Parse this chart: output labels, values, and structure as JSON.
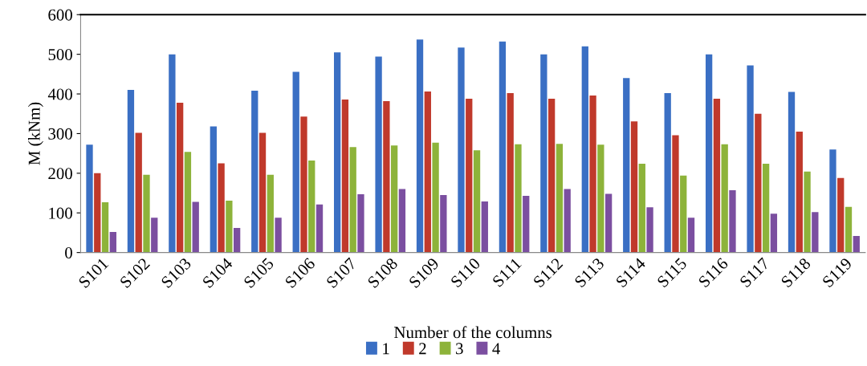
{
  "chart_data": {
    "type": "bar",
    "xlabel": "Number of the columns",
    "ylabel": "M (kNm)",
    "categories": [
      "S101",
      "S102",
      "S103",
      "S104",
      "S105",
      "S106",
      "S107",
      "S108",
      "S109",
      "S110",
      "S111",
      "S112",
      "S113",
      "S114",
      "S115",
      "S116",
      "S117",
      "S118",
      "S119"
    ],
    "series": [
      {
        "name": "1",
        "color": "#3a6fc4",
        "values": [
          272,
          410,
          500,
          318,
          408,
          456,
          505,
          494,
          537,
          517,
          532,
          500,
          520,
          440,
          402,
          500,
          472,
          405,
          260
        ]
      },
      {
        "name": "2",
        "color": "#c0392b",
        "values": [
          200,
          302,
          378,
          225,
          302,
          343,
          386,
          382,
          406,
          388,
          402,
          388,
          396,
          331,
          296,
          388,
          350,
          305,
          188
        ]
      },
      {
        "name": "3",
        "color": "#8db33a",
        "values": [
          127,
          196,
          254,
          131,
          196,
          232,
          266,
          270,
          277,
          258,
          273,
          274,
          272,
          224,
          194,
          273,
          224,
          204,
          115
        ]
      },
      {
        "name": "4",
        "color": "#7b4fa0",
        "values": [
          52,
          88,
          128,
          62,
          88,
          121,
          147,
          160,
          145,
          129,
          143,
          160,
          148,
          114,
          88,
          157,
          98,
          102,
          42
        ]
      }
    ],
    "ylim": [
      0,
      600
    ],
    "yticks": [
      0,
      100,
      200,
      300,
      400,
      500,
      600
    ],
    "grid": false,
    "legend": "bottom"
  }
}
